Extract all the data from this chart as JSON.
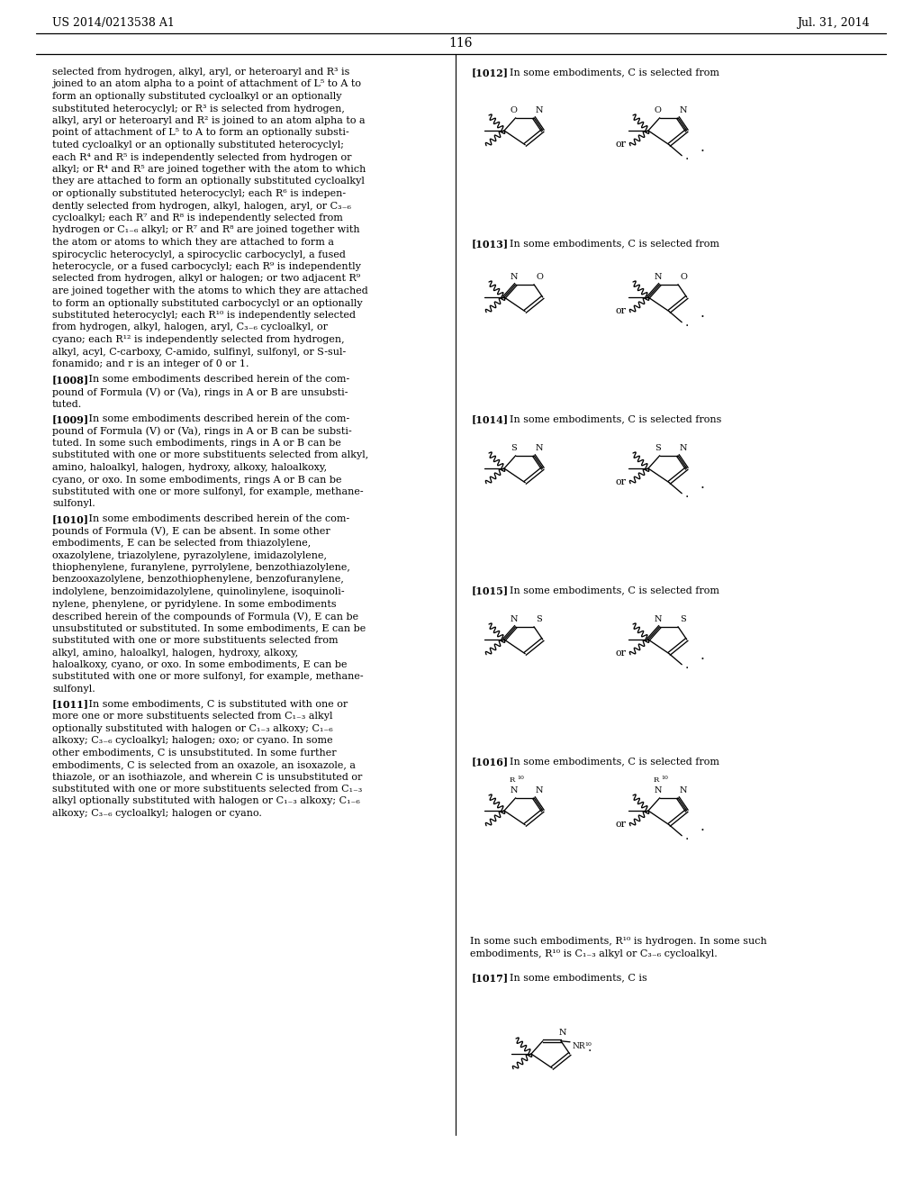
{
  "bg_color": "#ffffff",
  "header_left": "US 2014/0213538 A1",
  "header_right": "Jul. 31, 2014",
  "page_number": "116",
  "left_col_text": [
    "selected from hydrogen, alkyl, aryl, or heteroaryl and R³ is",
    "joined to an atom alpha to a point of attachment of L⁵ to A to",
    "form an optionally substituted cycloalkyl or an optionally",
    "substituted heterocyclyl; or R³ is selected from hydrogen,",
    "alkyl, aryl or heteroaryl and R² is joined to an atom alpha to a",
    "point of attachment of L⁵ to A to form an optionally substi-",
    "tuted cycloalkyl or an optionally substituted heterocyclyl;",
    "each R⁴ and R⁵ is independently selected from hydrogen or",
    "alkyl; or R⁴ and R⁵ are joined together with the atom to which",
    "they are attached to form an optionally substituted cycloalkyl",
    "or optionally substituted heterocyclyl; each R⁶ is indepen-",
    "dently selected from hydrogen, alkyl, halogen, aryl, or C₃₋₆",
    "cycloalkyl; each R⁷ and R⁸ is independently selected from",
    "hydrogen or C₁₋₆ alkyl; or R⁷ and R⁸ are joined together with",
    "the atom or atoms to which they are attached to form a",
    "spirocyclic heterocyclyl, a spirocyclic carbocyclyl, a fused",
    "heterocycle, or a fused carbocyclyl; each R⁹ is independently",
    "selected from hydrogen, alkyl or halogen; or two adjacent R⁹",
    "are joined together with the atoms to which they are attached",
    "to form an optionally substituted carbocyclyl or an optionally",
    "substituted heterocyclyl; each R¹⁰ is independently selected",
    "from hydrogen, alkyl, halogen, aryl, C₃₋₆ cycloalkyl, or",
    "cyano; each R¹² is independently selected from hydrogen,",
    "alkyl, acyl, C-carboxy, C-amido, sulfinyl, sulfonyl, or S-sul-",
    "fonamido; and r is an integer of 0 or 1."
  ],
  "para_1008": "[1008]  In some embodiments described herein of the com-pound of Formula (V) or (Va), rings in A or B are unsubstituted.",
  "para_1009_lines": [
    "[1009]  In some embodiments described herein of the com-",
    "pound of Formula (V) or (Va), rings in A or B can be substi-",
    "tuted. In some such embodiments, rings in A or B can be",
    "substituted with one or more substituents selected from alkyl,",
    "amino, haloalkyl, halogen, hydroxy, alkoxy, haloalkoxy,",
    "cyano, or oxo. In some embodiments, rings A or B can be",
    "substituted with one or more sulfonyl, for example, methane-",
    "sulfonyl."
  ],
  "para_1010_lines": [
    "[1010]  In some embodiments described herein of the com-",
    "pounds of Formula (V), E can be absent. In some other",
    "embodiments, E can be selected from thiazolylene,",
    "oxazolylene, triazolylene, pyrazolylene, imidazolylene,",
    "thiophenylene, furanylene, pyrrolylene, benzothiazolylene,",
    "benzooxazolylene, benzothiophenylene, benzofuranylene,",
    "indolylene, benzoimidazolylene, quinolinylene, isoquinoli-",
    "nylene, phenylene, or pyridylene. In some embodiments",
    "described herein of the compounds of Formula (V), E can be",
    "unsubstituted or substituted. In some embodiments, E can be",
    "substituted with one or more substituents selected from",
    "alkyl, amino, haloalkyl, halogen, hydroxy, alkoxy,",
    "haloalkoxy, cyano, or oxo. In some embodiments, E can be",
    "substituted with one or more sulfonyl, for example, methane-",
    "sulfonyl."
  ],
  "para_1011_lines": [
    "[1011]  In some embodiments, C is substituted with one or",
    "more one or more substituents selected from C₁₋₃ alkyl",
    "optionally substituted with halogen or C₁₋₃ alkoxy; C₁₋₆",
    "alkoxy; C₃₋₆ cycloalkyl; halogen; oxo; or cyano. In some",
    "other embodiments, C is unsubstituted. In some further",
    "embodiments, C is selected from an oxazole, an isoxazole, a",
    "thiazole, or an isothiazole, and wherein C is unsubstituted or",
    "substituted with one or more substituents selected from C₁₋₃",
    "alkyl optionally substituted with halogen or C₁₋₃ alkoxy; C₁₋₆",
    "alkoxy; C₃₋₆ cycloalkyl; halogen or cyano."
  ],
  "right_sections": [
    {
      "tag": "[1012]",
      "text": "In some embodiments, C is selected from",
      "atom1": "O",
      "atom2": "N",
      "style": "ON"
    },
    {
      "tag": "[1013]",
      "text": "In some embodiments, C is selected from",
      "atom1": "N",
      "atom2": "O",
      "style": "NO"
    },
    {
      "tag": "[1014]",
      "text": "In some embodiments, C is selected frons",
      "atom1": "S",
      "atom2": "N",
      "style": "ON"
    },
    {
      "tag": "[1015]",
      "text": "In some embodiments, C is selected from",
      "atom1": "N",
      "atom2": "S",
      "style": "NO"
    },
    {
      "tag": "[1016]",
      "text": "In some embodiments, C is selected from",
      "atom1": "N",
      "atom2": "N",
      "style": "pyrazole"
    }
  ],
  "footer_lines": [
    "In some such embodiments, R¹⁰ is hydrogen. In some such",
    "embodiments, R¹⁰ is C₁₋₃ alkyl or C₃₋₆ cycloalkyl."
  ],
  "tag_1017": "[1017]",
  "text_1017": "In some embodiments, C is"
}
